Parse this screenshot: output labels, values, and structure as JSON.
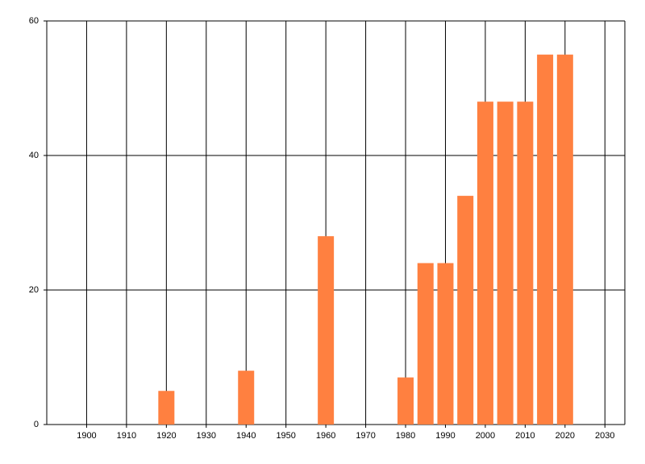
{
  "chart_data": {
    "type": "bar",
    "x": [
      1920,
      1940,
      1960,
      1980,
      1985,
      1990,
      1995,
      2000,
      2005,
      2010,
      2015,
      2020
    ],
    "values": [
      5,
      8,
      28,
      7,
      24,
      24,
      34,
      48,
      48,
      48,
      55,
      55
    ],
    "color": "#ff8040",
    "xlim": [
      1890,
      2035
    ],
    "xticks": [
      1900,
      1910,
      1920,
      1930,
      1940,
      1950,
      1960,
      1970,
      1980,
      1990,
      2000,
      2010,
      2020,
      2030
    ],
    "ylim": [
      0,
      60
    ],
    "yticks": [
      0,
      20,
      40,
      60
    ],
    "grid": true
  }
}
